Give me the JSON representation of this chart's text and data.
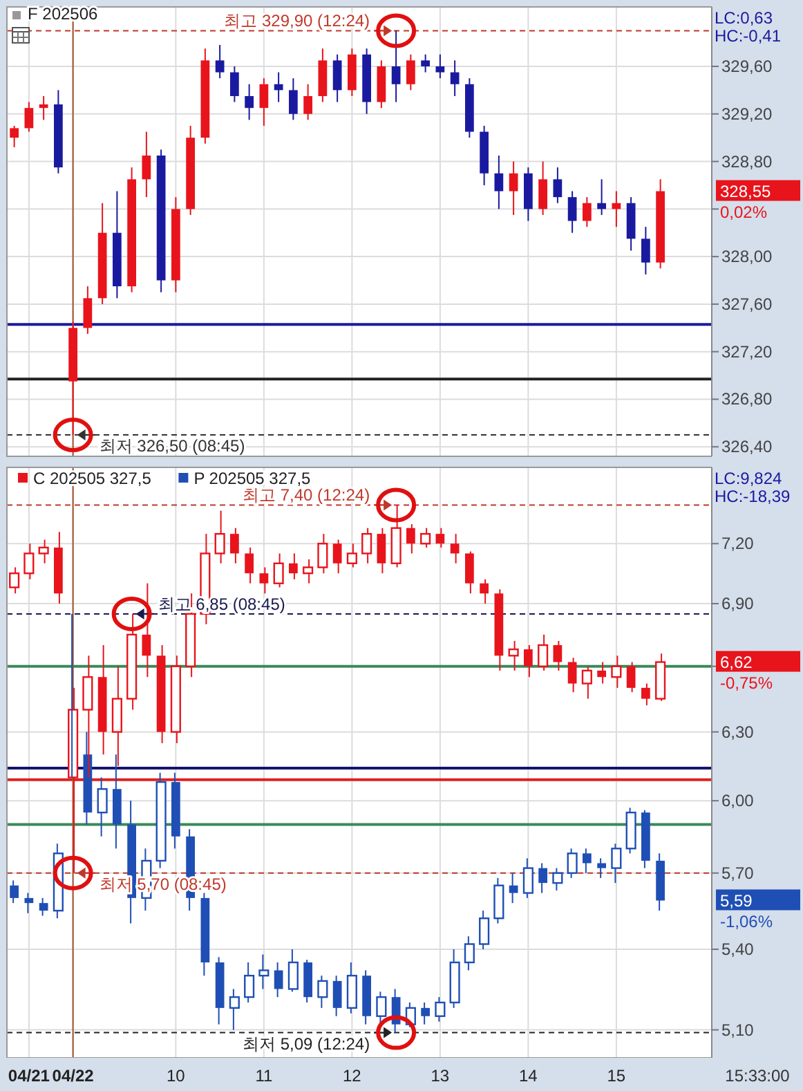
{
  "chart_data": [
    {
      "type": "candlestick",
      "title": "F 202506",
      "categories": [
        null,
        "04/21",
        null,
        null,
        "04/22",
        null,
        null,
        null,
        null,
        null,
        null,
        "10",
        null,
        null,
        null,
        null,
        null,
        "11",
        null,
        null,
        null,
        null,
        null,
        "12",
        null,
        null,
        null,
        null,
        null,
        "13",
        null,
        null,
        null,
        null,
        null,
        "14",
        null,
        null,
        null,
        null,
        null,
        "15",
        null,
        null,
        null,
        null,
        null,
        null
      ],
      "ylim": [
        326.32,
        330.1
      ],
      "yticks": [
        {
          "value": 326.4,
          "label": "326,40"
        },
        {
          "value": 326.8,
          "label": "326,80"
        },
        {
          "value": 327.2,
          "label": "327,20"
        },
        {
          "value": 327.6,
          "label": "327,60"
        },
        {
          "value": 328.0,
          "label": "328,00"
        },
        {
          "value": 328.4,
          "label": null
        },
        {
          "value": 328.8,
          "label": "328,80"
        },
        {
          "value": 329.2,
          "label": "329,20"
        },
        {
          "value": 329.6,
          "label": "329,60"
        }
      ],
      "grid": true,
      "tick_labels": "y",
      "series": [
        {
          "colors": [
            "#e8141c",
            "#e8141c",
            "#e8141c",
            "#1a1aa0",
            "#e8141c",
            "#e8141c",
            "#e8141c",
            "#1a1aa0",
            "#e8141c",
            "#e8141c",
            "#1a1aa0",
            "#e8141c",
            "#e8141c",
            "#e8141c",
            "#1a1aa0",
            "#1a1aa0",
            "#1a1aa0",
            "#e8141c",
            "#1a1aa0",
            "#1a1aa0",
            "#e8141c",
            "#e8141c",
            "#1a1aa0",
            "#e8141c",
            "#1a1aa0",
            "#e8141c",
            "#1a1aa0",
            "#e8141c",
            "#1a1aa0",
            "#1a1aa0",
            "#1a1aa0",
            "#1a1aa0",
            "#1a1aa0",
            "#1a1aa0",
            "#e8141c",
            "#1a1aa0",
            "#e8141c",
            "#1a1aa0",
            "#1a1aa0",
            "#e8141c",
            "#1a1aa0",
            "#e8141c",
            "#1a1aa0",
            "#1a1aa0",
            "#e8141c",
            null,
            null,
            null
          ],
          "ohlc": [
            [
              329.0,
              329.1,
              328.92,
              329.08
            ],
            [
              329.08,
              329.3,
              329.05,
              329.25
            ],
            [
              329.25,
              329.35,
              329.15,
              329.28
            ],
            [
              329.28,
              329.4,
              328.7,
              328.75
            ],
            [
              326.95,
              327.45,
              326.5,
              327.4
            ],
            [
              327.4,
              327.75,
              327.35,
              327.65
            ],
            [
              327.65,
              328.45,
              327.6,
              328.2
            ],
            [
              328.2,
              328.55,
              327.65,
              327.75
            ],
            [
              327.75,
              328.75,
              327.7,
              328.65
            ],
            [
              328.65,
              329.05,
              328.5,
              328.85
            ],
            [
              328.85,
              328.9,
              327.7,
              327.8
            ],
            [
              327.8,
              328.5,
              327.7,
              328.4
            ],
            [
              328.4,
              329.1,
              328.35,
              329.0
            ],
            [
              329.0,
              329.75,
              328.95,
              329.65
            ],
            [
              329.65,
              329.78,
              329.5,
              329.55
            ],
            [
              329.55,
              329.6,
              329.3,
              329.35
            ],
            [
              329.35,
              329.45,
              329.15,
              329.25
            ],
            [
              329.25,
              329.5,
              329.1,
              329.45
            ],
            [
              329.45,
              329.55,
              329.3,
              329.4
            ],
            [
              329.4,
              329.5,
              329.15,
              329.2
            ],
            [
              329.2,
              329.45,
              329.15,
              329.35
            ],
            [
              329.35,
              329.75,
              329.3,
              329.65
            ],
            [
              329.65,
              329.7,
              329.3,
              329.4
            ],
            [
              329.4,
              329.75,
              329.35,
              329.7
            ],
            [
              329.7,
              329.75,
              329.2,
              329.3
            ],
            [
              329.3,
              329.65,
              329.25,
              329.6
            ],
            [
              329.6,
              329.9,
              329.3,
              329.45
            ],
            [
              329.45,
              329.7,
              329.4,
              329.65
            ],
            [
              329.65,
              329.7,
              329.55,
              329.6
            ],
            [
              329.6,
              329.7,
              329.5,
              329.55
            ],
            [
              329.55,
              329.65,
              329.35,
              329.45
            ],
            [
              329.45,
              329.5,
              329.0,
              329.05
            ],
            [
              329.05,
              329.1,
              328.6,
              328.7
            ],
            [
              328.7,
              328.85,
              328.4,
              328.55
            ],
            [
              328.55,
              328.8,
              328.35,
              328.7
            ],
            [
              328.7,
              328.75,
              328.3,
              328.4
            ],
            [
              328.4,
              328.8,
              328.35,
              328.65
            ],
            [
              328.65,
              328.75,
              328.45,
              328.5
            ],
            [
              328.5,
              328.55,
              328.2,
              328.3
            ],
            [
              328.3,
              328.5,
              328.25,
              328.45
            ],
            [
              328.45,
              328.65,
              328.35,
              328.4
            ],
            [
              328.4,
              328.55,
              328.25,
              328.45
            ],
            [
              328.45,
              328.5,
              328.05,
              328.15
            ],
            [
              328.15,
              328.25,
              327.85,
              327.95
            ],
            [
              327.95,
              328.65,
              327.9,
              328.55
            ],
            null,
            null,
            null
          ]
        }
      ],
      "ref_lines": [
        {
          "axis": "y",
          "value": 329.9,
          "label": "최고 329,90 (12:24)",
          "color": "#c0392b",
          "line_style": "dashed"
        },
        {
          "axis": "y",
          "value": 326.5,
          "label": "최저 326,50 (08:45)",
          "color": "#333333",
          "line_style": "dashed"
        },
        {
          "axis": "y",
          "value": 327.43,
          "color": "#1a1aa0",
          "line_style": "solid"
        },
        {
          "axis": "y",
          "value": 326.97,
          "color": "#222222",
          "line_style": "solid"
        },
        {
          "axis": "x",
          "value": "04/22",
          "color": "#a0522d",
          "line_style": "solid"
        }
      ],
      "annotations": [
        "LC:0,63",
        "HC:-0,41",
        "328,55",
        "0,02%"
      ]
    },
    {
      "type": "candlestick",
      "categories": [
        null,
        "04/21",
        null,
        null,
        "04/22",
        null,
        null,
        null,
        null,
        null,
        null,
        "10",
        null,
        null,
        null,
        null,
        null,
        "11",
        null,
        null,
        null,
        null,
        null,
        "12",
        null,
        null,
        null,
        null,
        null,
        "13",
        null,
        null,
        null,
        null,
        null,
        "14",
        null,
        null,
        null,
        null,
        null,
        "15",
        null,
        null,
        null,
        null,
        null,
        null
      ],
      "ylim": [
        5.0,
        7.6
      ],
      "log": true,
      "yticks": [
        {
          "value": 5.1,
          "label": "5,10"
        },
        {
          "value": 5.4,
          "label": "5,40"
        },
        {
          "value": 5.7,
          "label": "5,70"
        },
        {
          "value": 6.0,
          "label": "6,00"
        },
        {
          "value": 6.3,
          "label": "6,30"
        },
        {
          "value": 6.6,
          "label": null
        },
        {
          "value": 6.9,
          "label": "6,90"
        },
        {
          "value": 7.2,
          "label": "7,20"
        }
      ],
      "grid": true,
      "legend": "top left",
      "series": [
        {
          "name": "C 202505 327,5",
          "color": "#e8141c",
          "ohlc": [
            [
              6.98,
              7.08,
              6.95,
              7.05
            ],
            [
              7.05,
              7.2,
              7.02,
              7.15
            ],
            [
              7.15,
              7.22,
              7.1,
              7.18
            ],
            [
              7.18,
              7.26,
              6.9,
              6.95
            ],
            [
              6.1,
              6.5,
              5.7,
              6.4
            ],
            [
              6.4,
              6.65,
              6.1,
              6.55
            ],
            [
              6.55,
              6.7,
              6.2,
              6.3
            ],
            [
              6.3,
              6.6,
              6.15,
              6.45
            ],
            [
              6.45,
              6.85,
              6.4,
              6.75
            ],
            [
              6.75,
              7.0,
              6.55,
              6.65
            ],
            [
              6.65,
              6.7,
              6.25,
              6.3
            ],
            [
              6.3,
              6.65,
              6.25,
              6.6
            ],
            [
              6.6,
              6.95,
              6.55,
              6.85
            ],
            [
              6.85,
              7.25,
              6.8,
              7.15
            ],
            [
              7.15,
              7.37,
              7.1,
              7.25
            ],
            [
              7.25,
              7.28,
              7.1,
              7.15
            ],
            [
              7.15,
              7.18,
              7.0,
              7.05
            ],
            [
              7.05,
              7.08,
              6.95,
              7.0
            ],
            [
              7.0,
              7.15,
              6.98,
              7.1
            ],
            [
              7.1,
              7.15,
              7.02,
              7.05
            ],
            [
              7.05,
              7.12,
              7.0,
              7.08
            ],
            [
              7.08,
              7.25,
              7.05,
              7.2
            ],
            [
              7.2,
              7.22,
              7.05,
              7.1
            ],
            [
              7.1,
              7.2,
              7.08,
              7.15
            ],
            [
              7.15,
              7.28,
              7.1,
              7.25
            ],
            [
              7.25,
              7.28,
              7.05,
              7.1
            ],
            [
              7.1,
              7.4,
              7.08,
              7.28
            ],
            [
              7.28,
              7.3,
              7.15,
              7.2
            ],
            [
              7.2,
              7.28,
              7.18,
              7.25
            ],
            [
              7.25,
              7.28,
              7.18,
              7.2
            ],
            [
              7.2,
              7.25,
              7.1,
              7.15
            ],
            [
              7.15,
              7.16,
              6.95,
              7.0
            ],
            [
              7.0,
              7.02,
              6.9,
              6.95
            ],
            [
              6.95,
              6.97,
              6.58,
              6.65
            ],
            [
              6.65,
              6.72,
              6.58,
              6.68
            ],
            [
              6.68,
              6.7,
              6.55,
              6.6
            ],
            [
              6.6,
              6.75,
              6.58,
              6.7
            ],
            [
              6.7,
              6.72,
              6.58,
              6.62
            ],
            [
              6.62,
              6.64,
              6.48,
              6.52
            ],
            [
              6.52,
              6.6,
              6.45,
              6.58
            ],
            [
              6.58,
              6.62,
              6.52,
              6.55
            ],
            [
              6.55,
              6.65,
              6.5,
              6.6
            ],
            [
              6.6,
              6.62,
              6.48,
              6.5
            ],
            [
              6.5,
              6.52,
              6.42,
              6.45
            ],
            [
              6.45,
              6.66,
              6.44,
              6.62
            ],
            null,
            null,
            null
          ]
        },
        {
          "name": "P 202505 327,5",
          "color": "#1f4fb5",
          "ohlc": [
            [
              5.65,
              5.67,
              5.58,
              5.6
            ],
            [
              5.6,
              5.62,
              5.54,
              5.58
            ],
            [
              5.58,
              5.6,
              5.53,
              5.55
            ],
            [
              5.55,
              5.82,
              5.52,
              5.78
            ],
            [
              6.4,
              6.85,
              6.1,
              6.2
            ],
            [
              6.2,
              6.3,
              5.9,
              5.95
            ],
            [
              5.95,
              6.1,
              5.85,
              6.05
            ],
            [
              6.05,
              6.2,
              5.8,
              5.9
            ],
            [
              5.9,
              6.0,
              5.5,
              5.6
            ],
            [
              5.6,
              5.8,
              5.55,
              5.75
            ],
            [
              5.75,
              6.12,
              5.72,
              6.08
            ],
            [
              6.08,
              6.12,
              5.8,
              5.85
            ],
            [
              5.85,
              5.88,
              5.55,
              5.6
            ],
            [
              5.6,
              5.62,
              5.3,
              5.35
            ],
            [
              5.35,
              5.37,
              5.12,
              5.18
            ],
            [
              5.18,
              5.25,
              5.1,
              5.22
            ],
            [
              5.22,
              5.35,
              5.2,
              5.3
            ],
            [
              5.3,
              5.38,
              5.25,
              5.32
            ],
            [
              5.32,
              5.35,
              5.22,
              5.25
            ],
            [
              5.25,
              5.4,
              5.24,
              5.35
            ],
            [
              5.35,
              5.36,
              5.2,
              5.22
            ],
            [
              5.22,
              5.3,
              5.18,
              5.28
            ],
            [
              5.28,
              5.3,
              5.15,
              5.18
            ],
            [
              5.18,
              5.35,
              5.16,
              5.3
            ],
            [
              5.3,
              5.32,
              5.12,
              5.15
            ],
            [
              5.15,
              5.24,
              5.12,
              5.22
            ],
            [
              5.22,
              5.25,
              5.09,
              5.12
            ],
            [
              5.12,
              5.2,
              5.11,
              5.18
            ],
            [
              5.18,
              5.2,
              5.12,
              5.15
            ],
            [
              5.15,
              5.22,
              5.13,
              5.2
            ],
            [
              5.2,
              5.4,
              5.18,
              5.35
            ],
            [
              5.35,
              5.45,
              5.32,
              5.42
            ],
            [
              5.42,
              5.55,
              5.4,
              5.52
            ],
            [
              5.52,
              5.68,
              5.5,
              5.65
            ],
            [
              5.65,
              5.7,
              5.58,
              5.62
            ],
            [
              5.62,
              5.76,
              5.6,
              5.72
            ],
            [
              5.72,
              5.74,
              5.62,
              5.66
            ],
            [
              5.66,
              5.72,
              5.63,
              5.7
            ],
            [
              5.7,
              5.8,
              5.68,
              5.78
            ],
            [
              5.78,
              5.8,
              5.7,
              5.74
            ],
            [
              5.74,
              5.76,
              5.68,
              5.72
            ],
            [
              5.72,
              5.82,
              5.66,
              5.8
            ],
            [
              5.8,
              5.97,
              5.78,
              5.95
            ],
            [
              5.95,
              5.96,
              5.72,
              5.75
            ],
            [
              5.75,
              5.78,
              5.55,
              5.59
            ],
            null,
            null,
            null
          ]
        }
      ],
      "ref_lines": [
        {
          "axis": "y",
          "value": 7.4,
          "label": "최고 7,40 (12:24)",
          "color": "#c0392b",
          "line_style": "dashed"
        },
        {
          "axis": "y",
          "value": 6.85,
          "label": "최고 6,85 (08:45)",
          "color": "#1a1a50",
          "line_style": "dashed"
        },
        {
          "axis": "y",
          "value": 5.7,
          "label": "최저 5,70 (08:45)",
          "color": "#c0392b",
          "line_style": "dashed"
        },
        {
          "axis": "y",
          "value": 5.09,
          "label": "최저 5,09 (12:24)",
          "color": "#222222",
          "line_style": "dashed"
        },
        {
          "axis": "y",
          "value": 6.6,
          "color": "#3a8a5a",
          "line_style": "solid"
        },
        {
          "axis": "y",
          "value": 5.9,
          "color": "#3a8a5a",
          "line_style": "solid"
        },
        {
          "axis": "y",
          "value": 6.14,
          "color": "#14146e",
          "line_style": "solid"
        },
        {
          "axis": "y",
          "value": 6.09,
          "color": "#e02020",
          "line_style": "solid"
        },
        {
          "axis": "x",
          "value": "04/22",
          "color": "#a0522d",
          "line_style": "solid"
        }
      ],
      "annotations": [
        "LC:9,824",
        "HC:-18,39",
        "6,62",
        "-0,75%",
        "5,59",
        "-1,06%",
        "15:33:00"
      ]
    }
  ]
}
